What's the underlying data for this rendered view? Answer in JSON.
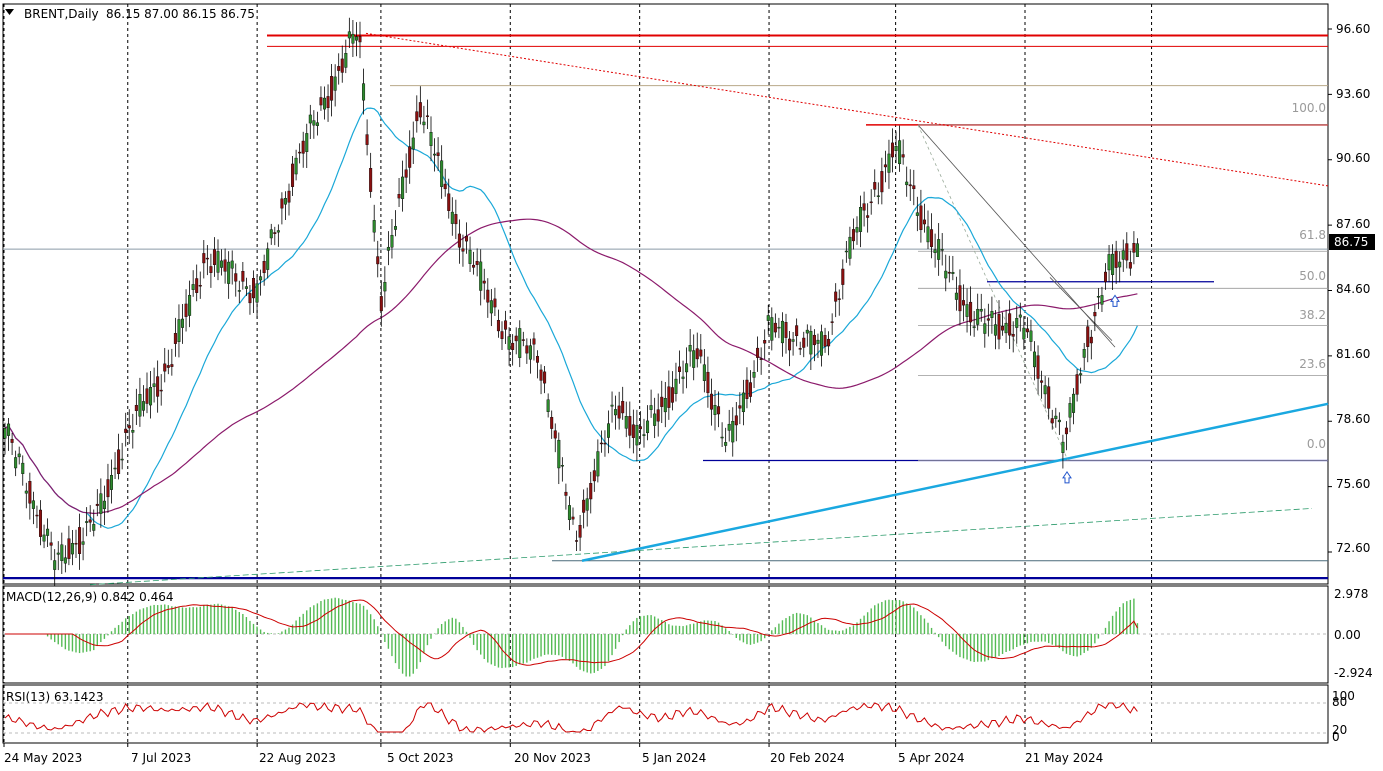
{
  "header": {
    "menu_arrow": "dropdown-triangle",
    "symbol_timeframe": "BRENT,Daily",
    "ohlc": "86.15 87.00 86.15 86.75"
  },
  "price_panel": {
    "axis_ticks": [
      "96.60",
      "93.60",
      "90.60",
      "87.60",
      "84.60",
      "81.60",
      "78.60",
      "75.60",
      "72.60"
    ],
    "current_price": "86.75",
    "fib_labels": [
      "100.0",
      "61.8",
      "50.0",
      "38.2",
      "23.6",
      "0.0"
    ]
  },
  "macd_panel": {
    "title": "MACD(12,26,9) 0.842 0.464",
    "axis_ticks": [
      "2.978",
      "0.00",
      "-2.924"
    ]
  },
  "rsi_panel": {
    "title": "RSI(13) 63.1423",
    "axis_ticks": [
      "100",
      "80",
      "20",
      "0"
    ]
  },
  "date_labels": [
    "24 May 2023",
    "7 Jul 2023",
    "22 Aug 2023",
    "5 Oct 2023",
    "20 Nov 2023",
    "5 Jan 2024",
    "20 Feb 2024",
    "5 Apr 2024",
    "21 May 2024"
  ],
  "colors": {
    "bull": "#2e8b2e",
    "bear": "#8b1010",
    "ma_fast": "#1aa8d8",
    "ma_slow": "#8b1a6b",
    "resistance": "#e00000",
    "support": "#000099",
    "trendline": "#1aa8e0",
    "macd_hist": "#55bb55",
    "macd_signal": "#cc0000",
    "rsi": "#cc0000"
  },
  "chart_data": [
    {
      "type": "candlestick",
      "title": "BRENT,Daily",
      "x_labels": [
        "24 May 2023",
        "7 Jul 2023",
        "22 Aug 2023",
        "5 Oct 2023",
        "20 Nov 2023",
        "5 Jan 2024",
        "20 Feb 2024",
        "5 Apr 2024",
        "21 May 2024"
      ],
      "ylim": [
        71.2,
        97.2
      ],
      "current_price": 86.75,
      "anchors": [
        {
          "date": "24 May 2023",
          "close": 78.4
        },
        {
          "date": "12 Jun 2023",
          "close": 72.0
        },
        {
          "date": "28 Jun 2023",
          "close": 74.6
        },
        {
          "date": "7 Jul 2023",
          "close": 78.2
        },
        {
          "date": "21 Jul 2023",
          "close": 81.0
        },
        {
          "date": "4 Aug 2023",
          "close": 86.2
        },
        {
          "date": "22 Aug 2023",
          "close": 84.5
        },
        {
          "date": "5 Sep 2023",
          "close": 90.5
        },
        {
          "date": "27 Sep 2023",
          "close": 96.6
        },
        {
          "date": "5 Oct 2023",
          "close": 84.1
        },
        {
          "date": "11 Oct 2023",
          "close": 88.2
        },
        {
          "date": "19 Oct 2023",
          "close": 93.2
        },
        {
          "date": "1 Nov 2023",
          "close": 87.5
        },
        {
          "date": "20 Nov 2023",
          "close": 82.2
        },
        {
          "date": "30 Nov 2023",
          "close": 81.8
        },
        {
          "date": "13 Dec 2023",
          "close": 73.2
        },
        {
          "date": "28 Dec 2023",
          "close": 79.5
        },
        {
          "date": "5 Jan 2024",
          "close": 77.8
        },
        {
          "date": "26 Jan 2024",
          "close": 81.9
        },
        {
          "date": "5 Feb 2024",
          "close": 77.4
        },
        {
          "date": "20 Feb 2024",
          "close": 82.9
        },
        {
          "date": "11 Mar 2024",
          "close": 82.0
        },
        {
          "date": "19 Mar 2024",
          "close": 86.4
        },
        {
          "date": "5 Apr 2024",
          "close": 91.2
        },
        {
          "date": "18 Apr 2024",
          "close": 86.8
        },
        {
          "date": "3 May 2024",
          "close": 83.2
        },
        {
          "date": "21 May 2024",
          "close": 82.9
        },
        {
          "date": "4 Jun 2024",
          "close": 77.5
        },
        {
          "date": "12 Jun 2024",
          "close": 82.3
        },
        {
          "date": "20 Jun 2024",
          "close": 85.6
        },
        {
          "date": "3 Jul 2024",
          "close": 86.75
        }
      ],
      "series": [
        {
          "name": "",
          "kind": "moving-average-fast"
        },
        {
          "name": "",
          "kind": "moving-average-slow"
        }
      ],
      "fibonacci": [
        {
          "label": "100.0",
          "price": 92.2
        },
        {
          "label": "61.8",
          "price": 86.4
        },
        {
          "label": "50.0",
          "price": 84.7
        },
        {
          "label": "38.2",
          "price": 83.0
        },
        {
          "label": "23.6",
          "price": 80.7
        },
        {
          "label": "0.0",
          "price": 76.8
        }
      ],
      "levels": [
        {
          "price": 96.3
        },
        {
          "price": 95.8
        },
        {
          "price": 94.0
        },
        {
          "price": 92.2
        },
        {
          "price": 86.5
        },
        {
          "price": 85.0
        },
        {
          "price": 76.8
        },
        {
          "price": 72.2
        },
        {
          "price": 71.4
        }
      ]
    },
    {
      "type": "histogram",
      "title": "MACD(12,26,9) 0.842 0.464",
      "ylim": [
        -3.3,
        3.4
      ],
      "main": 0.842,
      "signal": 0.464
    },
    {
      "type": "line",
      "title": "RSI(13) 63.1423",
      "ylim": [
        0,
        100
      ],
      "value": 63.1423
    }
  ]
}
